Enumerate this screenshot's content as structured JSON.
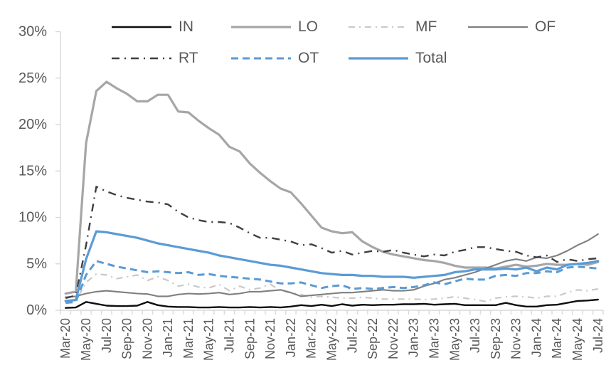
{
  "chart_data": {
    "type": "line",
    "title": "",
    "xlabel": "",
    "ylabel": "",
    "ylim": [
      0,
      30
    ],
    "y_ticks": [
      0,
      5,
      10,
      15,
      20,
      25,
      30
    ],
    "y_tick_labels": [
      "0%",
      "5%",
      "10%",
      "15%",
      "20%",
      "25%",
      "30%"
    ],
    "grid": false,
    "legend_position": "top",
    "legend_rows": [
      [
        "IN",
        "LO",
        "MF",
        "OF"
      ],
      [
        "RT",
        "OT",
        "Total"
      ]
    ],
    "axis_color": "#d9d9d9",
    "label_color": "#595959",
    "x": [
      "Mar-20",
      "Apr-20",
      "May-20",
      "Jun-20",
      "Jul-20",
      "Aug-20",
      "Sep-20",
      "Oct-20",
      "Nov-20",
      "Dec-20",
      "Jan-21",
      "Feb-21",
      "Mar-21",
      "Apr-21",
      "May-21",
      "Jun-21",
      "Jul-21",
      "Aug-21",
      "Sep-21",
      "Oct-21",
      "Nov-21",
      "Dec-21",
      "Jan-22",
      "Feb-22",
      "Mar-22",
      "Apr-22",
      "May-22",
      "Jun-22",
      "Jul-22",
      "Aug-22",
      "Sep-22",
      "Oct-22",
      "Nov-22",
      "Dec-22",
      "Jan-23",
      "Feb-23",
      "Mar-23",
      "Apr-23",
      "May-23",
      "Jun-23",
      "Jul-23",
      "Aug-23",
      "Sep-23",
      "Oct-23",
      "Nov-23",
      "Dec-23",
      "Jan-24",
      "Feb-24",
      "Mar-24",
      "Apr-24",
      "May-24",
      "Jun-24",
      "Jul-24"
    ],
    "x_label_every": 2,
    "series": [
      {
        "name": "IN",
        "color": "#0d0d0d",
        "width": 2.4,
        "dash": "",
        "values": [
          0.25,
          0.3,
          0.9,
          0.7,
          0.5,
          0.45,
          0.45,
          0.5,
          0.9,
          0.55,
          0.4,
          0.35,
          0.35,
          0.3,
          0.3,
          0.35,
          0.3,
          0.3,
          0.35,
          0.3,
          0.35,
          0.3,
          0.4,
          0.55,
          0.45,
          0.6,
          0.45,
          0.65,
          0.5,
          0.6,
          0.55,
          0.6,
          0.6,
          0.65,
          0.65,
          0.7,
          0.6,
          0.65,
          0.7,
          0.55,
          0.55,
          0.55,
          0.55,
          0.8,
          0.55,
          0.4,
          0.4,
          0.55,
          0.6,
          0.8,
          1.0,
          1.05,
          1.15
        ]
      },
      {
        "name": "LO",
        "color": "#a6a6a6",
        "width": 3.2,
        "dash": "",
        "values": [
          1.8,
          2.0,
          18.0,
          23.6,
          24.6,
          23.9,
          23.3,
          22.5,
          22.5,
          23.2,
          23.2,
          21.4,
          21.3,
          20.4,
          19.6,
          18.9,
          17.6,
          17.1,
          15.8,
          14.8,
          13.9,
          13.1,
          12.7,
          11.5,
          10.2,
          8.9,
          8.5,
          8.3,
          8.4,
          7.4,
          6.8,
          6.3,
          6.0,
          5.8,
          5.6,
          5.4,
          5.3,
          5.1,
          4.8,
          4.6,
          4.6,
          4.6,
          4.5,
          4.7,
          4.9,
          4.7,
          4.8,
          5.0,
          4.9,
          4.9,
          5.0,
          4.9,
          5.2
        ]
      },
      {
        "name": "MF",
        "color": "#c9c9c9",
        "width": 2.2,
        "dash": "9 6 2 6",
        "values": [
          0.9,
          1.0,
          3.0,
          3.9,
          3.8,
          3.4,
          3.6,
          3.8,
          3.2,
          3.6,
          3.2,
          2.6,
          2.8,
          2.5,
          2.4,
          2.8,
          2.1,
          2.6,
          2.2,
          2.4,
          2.8,
          2.1,
          1.9,
          1.7,
          1.4,
          1.5,
          1.4,
          1.3,
          1.3,
          1.4,
          1.3,
          1.2,
          1.2,
          1.2,
          1.2,
          1.15,
          1.2,
          1.3,
          1.45,
          1.3,
          1.15,
          0.95,
          1.3,
          1.45,
          1.5,
          1.45,
          1.3,
          1.5,
          1.5,
          1.9,
          2.2,
          2.1,
          2.3
        ]
      },
      {
        "name": "OF",
        "color": "#7f7f7f",
        "width": 2.1,
        "dash": "",
        "values": [
          1.4,
          1.5,
          1.8,
          2.0,
          2.1,
          2.0,
          1.9,
          1.8,
          1.75,
          1.5,
          1.5,
          1.7,
          1.8,
          1.75,
          1.8,
          1.9,
          1.7,
          1.8,
          2.0,
          2.0,
          2.1,
          2.2,
          1.9,
          1.5,
          1.6,
          1.7,
          1.8,
          1.9,
          1.9,
          2.0,
          2.1,
          2.2,
          2.1,
          2.1,
          2.2,
          2.6,
          2.9,
          3.3,
          3.5,
          3.8,
          4.1,
          4.5,
          4.9,
          5.3,
          5.5,
          5.3,
          5.7,
          5.6,
          5.9,
          6.4,
          7.0,
          7.5,
          8.2
        ]
      },
      {
        "name": "RT",
        "color": "#3f3f3f",
        "width": 2.4,
        "dash": "11 7 2 7",
        "values": [
          1.3,
          1.6,
          7.0,
          13.3,
          12.8,
          12.4,
          12.1,
          11.9,
          11.7,
          11.6,
          11.4,
          10.6,
          10.0,
          9.7,
          9.5,
          9.5,
          9.4,
          8.9,
          8.3,
          7.8,
          7.8,
          7.6,
          7.4,
          7.0,
          7.1,
          6.7,
          6.2,
          6.4,
          6.0,
          6.2,
          6.4,
          6.3,
          6.5,
          6.2,
          6.0,
          5.8,
          6.0,
          5.9,
          6.3,
          6.5,
          6.8,
          6.8,
          6.6,
          6.4,
          6.3,
          5.9,
          5.7,
          5.9,
          5.2,
          5.5,
          5.3,
          5.5,
          5.6
        ]
      },
      {
        "name": "OT",
        "color": "#5b9bd5",
        "width": 3.0,
        "dash": "10 6",
        "values": [
          0.8,
          0.9,
          3.8,
          5.3,
          5.0,
          4.7,
          4.5,
          4.3,
          4.1,
          4.2,
          4.1,
          4.0,
          4.1,
          3.8,
          3.9,
          3.7,
          3.6,
          3.5,
          3.4,
          3.3,
          3.1,
          2.9,
          2.9,
          3.0,
          2.7,
          2.4,
          2.6,
          2.7,
          2.3,
          2.4,
          2.3,
          2.4,
          2.5,
          2.4,
          2.5,
          2.7,
          3.0,
          2.8,
          3.1,
          3.4,
          3.3,
          3.3,
          3.7,
          3.8,
          3.7,
          4.0,
          4.0,
          4.2,
          4.1,
          4.6,
          4.7,
          4.6,
          4.5
        ]
      },
      {
        "name": "Total",
        "color": "#5b9bd5",
        "width": 3.2,
        "dash": "",
        "values": [
          1.0,
          1.1,
          5.5,
          8.5,
          8.4,
          8.2,
          8.0,
          7.8,
          7.5,
          7.2,
          7.0,
          6.8,
          6.6,
          6.4,
          6.2,
          5.9,
          5.7,
          5.5,
          5.3,
          5.1,
          4.9,
          4.8,
          4.6,
          4.4,
          4.2,
          4.0,
          3.9,
          3.8,
          3.8,
          3.7,
          3.7,
          3.6,
          3.6,
          3.6,
          3.5,
          3.6,
          3.7,
          3.8,
          4.1,
          4.2,
          4.4,
          4.4,
          4.4,
          4.5,
          4.4,
          4.6,
          4.2,
          4.6,
          4.4,
          4.9,
          5.0,
          5.1,
          5.3
        ]
      }
    ]
  }
}
